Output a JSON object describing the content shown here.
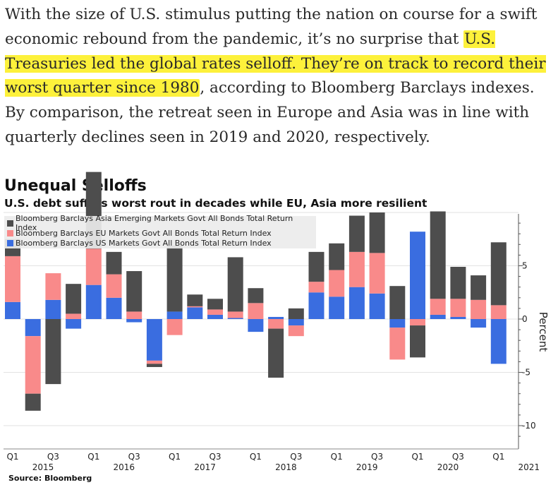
{
  "article": {
    "part1": "With the size of U.S. stimulus putting the nation on course for a swift economic rebound from the pandemic, it’s no surprise that ",
    "highlight": "U.S. Treasuries led the global rates selloff. They’re on track to record their worst quarter since 1980",
    "part2": ", according to Bloomberg Barclays indexes. By comparison, the retreat seen in Europe and Asia was in line with quarterly declines seen in 2019 and 2020, respectively."
  },
  "colors": {
    "highlight": "#fdf13b",
    "asia": "#4d4d4d",
    "eu": "#f98a8a",
    "us": "#3a6de0"
  },
  "chart_data": {
    "type": "bar",
    "title": "Unequal Selloffs",
    "subtitle": "U.S. debt suffers worst rout in decades while EU, Asia more resilient",
    "ylabel": "Percent",
    "ylim": [
      -12,
      10
    ],
    "yticks": [
      5,
      0,
      -5,
      -10
    ],
    "ytick_labels": [
      "5",
      "0",
      "-5",
      "-10"
    ],
    "legend_position": "top-left",
    "source": "Source: Bloomberg",
    "categories": [
      "Q1 2015",
      "Q2 2015",
      "Q3 2015",
      "Q4 2015",
      "Q1 2016",
      "Q2 2016",
      "Q3 2016",
      "Q4 2016",
      "Q1 2017",
      "Q2 2017",
      "Q3 2017",
      "Q4 2017",
      "Q1 2018",
      "Q2 2018",
      "Q3 2018",
      "Q4 2018",
      "Q1 2019",
      "Q2 2019",
      "Q3 2019",
      "Q4 2019",
      "Q1 2020",
      "Q2 2020",
      "Q3 2020",
      "Q4 2020",
      "Q1 2021"
    ],
    "x_tick_labels": [
      {
        "q": "Q1",
        "year": "2015",
        "index": 0
      },
      {
        "q": "Q3",
        "year": "",
        "index": 2
      },
      {
        "q": "Q1",
        "year": "2016",
        "index": 4
      },
      {
        "q": "Q3",
        "year": "",
        "index": 6
      },
      {
        "q": "Q1",
        "year": "2017",
        "index": 8
      },
      {
        "q": "Q3",
        "year": "",
        "index": 10
      },
      {
        "q": "Q1",
        "year": "2018",
        "index": 12
      },
      {
        "q": "Q3",
        "year": "",
        "index": 14
      },
      {
        "q": "Q1",
        "year": "2019",
        "index": 16
      },
      {
        "q": "Q3",
        "year": "",
        "index": 18
      },
      {
        "q": "Q1",
        "year": "2020",
        "index": 20
      },
      {
        "q": "Q3",
        "year": "",
        "index": 22
      },
      {
        "q": "Q1",
        "year": "2021",
        "index": 24
      }
    ],
    "series": [
      {
        "name": "Bloomberg Barclays Asia Emerging Markets Govt All Bonds Total Return Index",
        "color_key": "asia",
        "values": [
          1.6,
          -1.6,
          -6.1,
          2.8,
          7.2,
          2.1,
          3.8,
          -0.3,
          6.2,
          1.1,
          1.0,
          5.1,
          1.4,
          -4.6,
          1.0,
          2.8,
          2.5,
          3.4,
          3.8,
          3.1,
          -3.0,
          8.2,
          3.0,
          2.3,
          5.9
        ]
      },
      {
        "name": "Bloomberg Barclays EU Markets Govt All Bonds Total Return Index",
        "color_key": "eu",
        "values": [
          4.3,
          -5.4,
          2.5,
          0.5,
          3.4,
          2.2,
          0.7,
          -0.3,
          -1.5,
          0.1,
          0.5,
          0.6,
          1.5,
          -0.9,
          -1.0,
          1.0,
          2.5,
          3.3,
          3.8,
          -3.0,
          -0.6,
          1.5,
          1.7,
          1.8,
          1.3
        ]
      },
      {
        "name": "Bloomberg Barclays US Markets Govt All Bonds Total Return Index",
        "color_key": "us",
        "values": [
          1.6,
          -1.6,
          1.8,
          -0.9,
          3.2,
          2.0,
          -0.3,
          -3.9,
          0.7,
          1.1,
          0.4,
          0.1,
          -1.2,
          0.2,
          -0.6,
          2.5,
          2.1,
          3.0,
          2.4,
          -0.8,
          8.2,
          0.4,
          0.2,
          -0.8,
          -4.2
        ]
      }
    ]
  }
}
